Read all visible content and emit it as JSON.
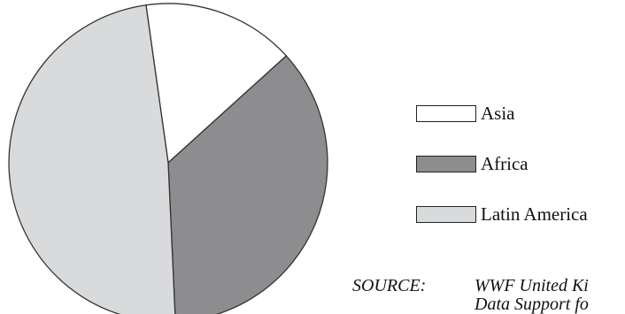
{
  "chart_data": {
    "type": "pie",
    "title": "",
    "slices": [
      {
        "label": "Asia",
        "value": 15.5,
        "color": "#ffffff"
      },
      {
        "label": "Africa",
        "value": 36.0,
        "color": "#8d8d8f"
      },
      {
        "label": "Latin America",
        "value": 48.5,
        "color": "#d9dadb"
      }
    ],
    "legend_position": "right",
    "edge_color": "#333333"
  },
  "legend": [
    {
      "label": "Asia",
      "color": "#ffffff"
    },
    {
      "label": "Africa",
      "color": "#8d8d8f"
    },
    {
      "label": "Latin America",
      "color": "#d9dadb"
    }
  ],
  "source": {
    "label": "SOURCE:",
    "line1": "WWF United Ki",
    "line2": "Data Support fo"
  }
}
